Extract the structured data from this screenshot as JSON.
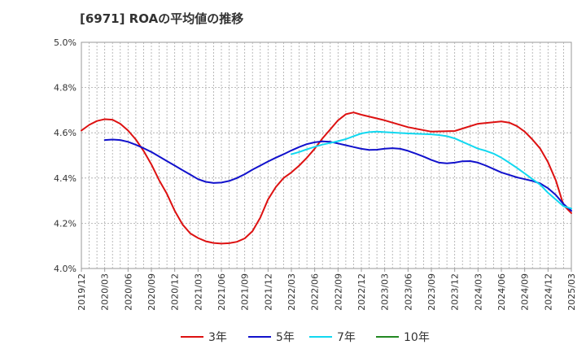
{
  "chart_data": {
    "type": "line",
    "title": "[6971]  ROAの平均値の推移",
    "xlabel": "",
    "ylabel": "",
    "x_ticks": [
      "2019/12",
      "2020/03",
      "2020/06",
      "2020/09",
      "2020/12",
      "2021/03",
      "2021/06",
      "2021/09",
      "2021/12",
      "2022/03",
      "2022/06",
      "2022/09",
      "2022/12",
      "2023/03",
      "2023/06",
      "2023/09",
      "2023/12",
      "2024/03",
      "2024/06",
      "2024/09",
      "2024/12",
      "2025/03"
    ],
    "y_ticks": [
      "4.0%",
      "4.2%",
      "4.4%",
      "4.6%",
      "4.8%",
      "5.0%"
    ],
    "ylim": [
      4.0,
      5.0
    ],
    "xlim": [
      "2019/12",
      "2025/03"
    ],
    "grid": true,
    "legend_position": "bottom",
    "series": [
      {
        "name": "3年",
        "color": "#dd1111",
        "points": [
          [
            "2019/12",
            4.61
          ],
          [
            "2020/01",
            4.635
          ],
          [
            "2020/02",
            4.652
          ],
          [
            "2020/03",
            4.66
          ],
          [
            "2020/04",
            4.658
          ],
          [
            "2020/05",
            4.64
          ],
          [
            "2020/06",
            4.61
          ],
          [
            "2020/07",
            4.57
          ],
          [
            "2020/08",
            4.52
          ],
          [
            "2020/09",
            4.46
          ],
          [
            "2020/10",
            4.39
          ],
          [
            "2020/11",
            4.33
          ],
          [
            "2020/12",
            4.255
          ],
          [
            "2021/01",
            4.195
          ],
          [
            "2021/02",
            4.155
          ],
          [
            "2021/03",
            4.135
          ],
          [
            "2021/04",
            4.12
          ],
          [
            "2021/05",
            4.113
          ],
          [
            "2021/06",
            4.11
          ],
          [
            "2021/07",
            4.112
          ],
          [
            "2021/08",
            4.118
          ],
          [
            "2021/09",
            4.133
          ],
          [
            "2021/10",
            4.165
          ],
          [
            "2021/11",
            4.225
          ],
          [
            "2021/12",
            4.305
          ],
          [
            "2022/01",
            4.36
          ],
          [
            "2022/02",
            4.4
          ],
          [
            "2022/03",
            4.425
          ],
          [
            "2022/04",
            4.455
          ],
          [
            "2022/05",
            4.49
          ],
          [
            "2022/06",
            4.53
          ],
          [
            "2022/07",
            4.575
          ],
          [
            "2022/08",
            4.615
          ],
          [
            "2022/09",
            4.655
          ],
          [
            "2022/10",
            4.682
          ],
          [
            "2022/11",
            4.69
          ],
          [
            "2022/12",
            4.68
          ],
          [
            "2023/03",
            4.655
          ],
          [
            "2023/06",
            4.625
          ],
          [
            "2023/09",
            4.605
          ],
          [
            "2023/12",
            4.608
          ],
          [
            "2024/03",
            4.64
          ],
          [
            "2024/06",
            4.65
          ],
          [
            "2024/07",
            4.645
          ],
          [
            "2024/08",
            4.63
          ],
          [
            "2024/09",
            4.605
          ],
          [
            "2024/10",
            4.57
          ],
          [
            "2024/11",
            4.53
          ],
          [
            "2024/12",
            4.47
          ],
          [
            "2025/01",
            4.39
          ],
          [
            "2025/02",
            4.28
          ],
          [
            "2025/03",
            4.245
          ]
        ]
      },
      {
        "name": "5年",
        "color": "#1111cc",
        "points": [
          [
            "2020/03",
            4.568
          ],
          [
            "2020/04",
            4.57
          ],
          [
            "2020/05",
            4.568
          ],
          [
            "2020/06",
            4.56
          ],
          [
            "2020/07",
            4.547
          ],
          [
            "2020/08",
            4.532
          ],
          [
            "2020/09",
            4.515
          ],
          [
            "2020/10",
            4.495
          ],
          [
            "2020/11",
            4.475
          ],
          [
            "2020/12",
            4.455
          ],
          [
            "2021/01",
            4.435
          ],
          [
            "2021/02",
            4.415
          ],
          [
            "2021/03",
            4.395
          ],
          [
            "2021/04",
            4.383
          ],
          [
            "2021/05",
            4.378
          ],
          [
            "2021/06",
            4.38
          ],
          [
            "2021/07",
            4.387
          ],
          [
            "2021/08",
            4.4
          ],
          [
            "2021/09",
            4.417
          ],
          [
            "2021/10",
            4.437
          ],
          [
            "2021/11",
            4.455
          ],
          [
            "2021/12",
            4.473
          ],
          [
            "2022/01",
            4.49
          ],
          [
            "2022/02",
            4.505
          ],
          [
            "2022/03",
            4.522
          ],
          [
            "2022/04",
            4.537
          ],
          [
            "2022/05",
            4.55
          ],
          [
            "2022/06",
            4.558
          ],
          [
            "2022/07",
            4.562
          ],
          [
            "2022/08",
            4.56
          ],
          [
            "2022/09",
            4.553
          ],
          [
            "2022/10",
            4.545
          ],
          [
            "2022/11",
            4.537
          ],
          [
            "2022/12",
            4.529
          ],
          [
            "2023/01",
            4.524
          ],
          [
            "2023/02",
            4.525
          ],
          [
            "2023/03",
            4.53
          ],
          [
            "2023/04",
            4.532
          ],
          [
            "2023/05",
            4.529
          ],
          [
            "2023/06",
            4.52
          ],
          [
            "2023/07",
            4.508
          ],
          [
            "2023/08",
            4.495
          ],
          [
            "2023/09",
            4.48
          ],
          [
            "2023/10",
            4.468
          ],
          [
            "2023/11",
            4.465
          ],
          [
            "2023/12",
            4.468
          ],
          [
            "2024/01",
            4.474
          ],
          [
            "2024/02",
            4.475
          ],
          [
            "2024/03",
            4.468
          ],
          [
            "2024/04",
            4.455
          ],
          [
            "2024/05",
            4.44
          ],
          [
            "2024/06",
            4.425
          ],
          [
            "2024/07",
            4.414
          ],
          [
            "2024/08",
            4.403
          ],
          [
            "2024/09",
            4.395
          ],
          [
            "2024/10",
            4.387
          ],
          [
            "2024/11",
            4.376
          ],
          [
            "2024/12",
            4.355
          ],
          [
            "2025/01",
            4.325
          ],
          [
            "2025/02",
            4.285
          ],
          [
            "2025/03",
            4.255
          ]
        ]
      },
      {
        "name": "7年",
        "color": "#11d8f0",
        "points": [
          [
            "2022/03",
            4.505
          ],
          [
            "2022/04",
            4.515
          ],
          [
            "2022/05",
            4.527
          ],
          [
            "2022/06",
            4.538
          ],
          [
            "2022/07",
            4.548
          ],
          [
            "2022/08",
            4.555
          ],
          [
            "2022/09",
            4.563
          ],
          [
            "2022/10",
            4.572
          ],
          [
            "2022/11",
            4.585
          ],
          [
            "2022/12",
            4.597
          ],
          [
            "2023/01",
            4.603
          ],
          [
            "2023/02",
            4.605
          ],
          [
            "2023/03",
            4.603
          ],
          [
            "2023/06",
            4.597
          ],
          [
            "2023/09",
            4.593
          ],
          [
            "2023/10",
            4.59
          ],
          [
            "2023/11",
            4.585
          ],
          [
            "2023/12",
            4.575
          ],
          [
            "2024/01",
            4.56
          ],
          [
            "2024/02",
            4.545
          ],
          [
            "2024/03",
            4.53
          ],
          [
            "2024/04",
            4.52
          ],
          [
            "2024/05",
            4.508
          ],
          [
            "2024/06",
            4.49
          ],
          [
            "2024/07",
            4.468
          ],
          [
            "2024/08",
            4.445
          ],
          [
            "2024/09",
            4.42
          ],
          [
            "2024/10",
            4.395
          ],
          [
            "2024/11",
            4.37
          ],
          [
            "2024/12",
            4.335
          ],
          [
            "2025/01",
            4.305
          ],
          [
            "2025/02",
            4.275
          ],
          [
            "2025/03",
            4.265
          ]
        ]
      },
      {
        "name": "10年",
        "color": "#228822",
        "points": []
      }
    ]
  }
}
